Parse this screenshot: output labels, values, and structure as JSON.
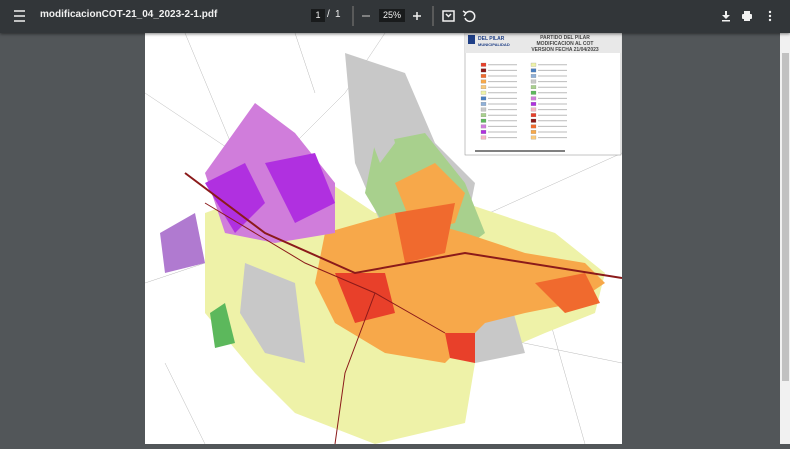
{
  "viewer": {
    "filename": "modificacionCOT-21_04_2023-2-1.pdf",
    "page_current": "1",
    "page_separator": "/",
    "page_total": "1",
    "zoom": "25%"
  },
  "map": {
    "logo_title": "DEL PILAR",
    "logo_subtitle": "MUNICIPALIDAD",
    "title_lines": [
      "PARTIDO DEL PILAR",
      "MODIFICACION AL COT",
      "VERSION FECHA 21/04/2023"
    ]
  }
}
